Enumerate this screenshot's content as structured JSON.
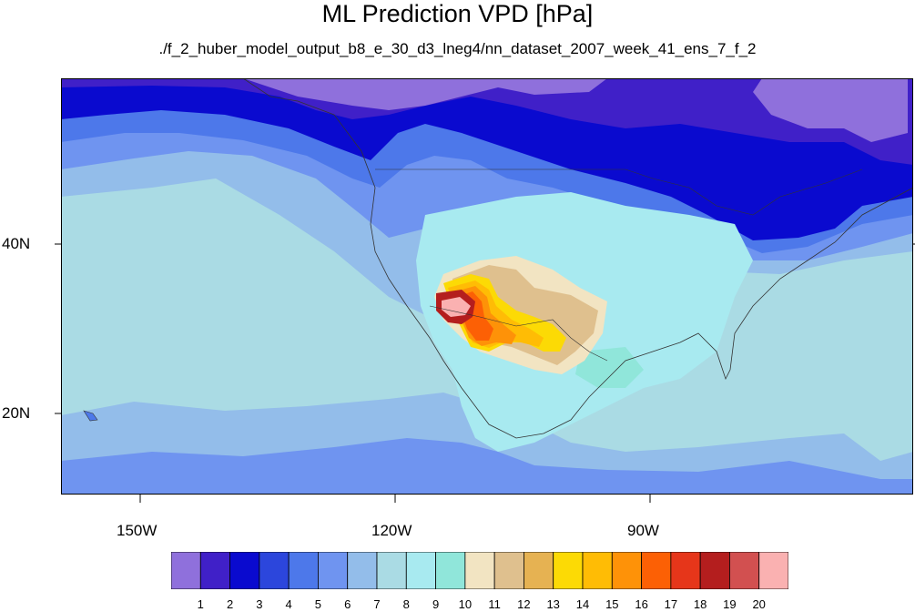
{
  "title": "ML Prediction VPD [hPa]",
  "subtitle": "./f_2_huber_model_output_b8_e_30_d3_lneg4/nn_dataset_2007_week_41_ens_7_f_2",
  "axes": {
    "lat_labels": [
      "40N",
      "20N"
    ],
    "lon_labels": [
      "150W",
      "120W",
      "90W"
    ]
  },
  "colorbar": {
    "labels": [
      "1",
      "2",
      "3",
      "4",
      "5",
      "6",
      "7",
      "8",
      "9",
      "10",
      "11",
      "12",
      "13",
      "14",
      "15",
      "16",
      "17",
      "18",
      "19",
      "20"
    ],
    "colors": [
      "#8f70dc",
      "#4020c8",
      "#0a0acf",
      "#2c46dc",
      "#4d78ea",
      "#6f94f0",
      "#93bdea",
      "#aadbe4",
      "#a8eaf0",
      "#90e6da",
      "#f2e4c2",
      "#dfc08e",
      "#e6b252",
      "#fcda05",
      "#ffbc05",
      "#fe9208",
      "#fc6005",
      "#e6361a",
      "#b41e1e",
      "#d25050",
      "#fab1b1"
    ]
  },
  "colors": {
    "ocean_background": "#aadbe4",
    "boundary_lines": "#333333"
  }
}
